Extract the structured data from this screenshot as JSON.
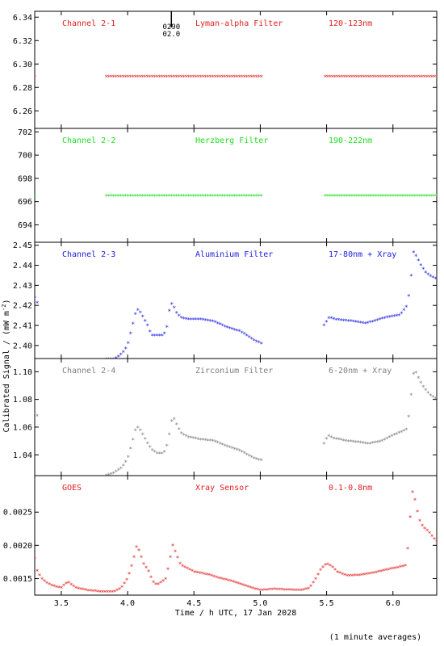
{
  "figure": {
    "ylabel": "Calibrated Signal / (mW m",
    "ylabel_sup": "-2",
    "ylabel_close": ")",
    "xlabel": "Time / h UTC, 17 Jan 2028",
    "footnote": "(1 minute averages)",
    "marker_label_1": "0290",
    "marker_label_2": "02.0",
    "marker_x": 4.33
  },
  "chart_data": [
    {
      "type": "scatter",
      "panel": "Channel 2-1",
      "labels": [
        "Channel 2-1",
        "Lyman-alpha Filter",
        "120-123nm"
      ],
      "color": "#e02020",
      "xlim": [
        3.3,
        6.33
      ],
      "ylim": [
        6.245,
        6.345
      ],
      "yticks": [
        6.26,
        6.28,
        6.3,
        6.32,
        6.34
      ],
      "ytick_labels": [
        "6.26",
        "6.28",
        "6.30",
        "6.32",
        "6.34"
      ],
      "segments": [
        {
          "x0": 3.3,
          "x1": 3.31,
          "points": [
            [
              3.3,
              6.289
            ],
            [
              3.31,
              6.289
            ]
          ]
        },
        {
          "x0": 3.84,
          "x1": 5.01,
          "points": [
            [
              3.84,
              6.289
            ],
            [
              5.01,
              6.289
            ]
          ]
        },
        {
          "x0": 5.49,
          "x1": 6.33,
          "points": [
            [
              5.49,
              6.289
            ],
            [
              6.33,
              6.289
            ]
          ]
        }
      ]
    },
    {
      "type": "scatter",
      "panel": "Channel 2-2",
      "labels": [
        "Channel 2-2",
        "Herzberg Filter",
        "190-222nm"
      ],
      "color": "#20e020",
      "xlim": [
        3.3,
        6.33
      ],
      "ylim": [
        692.5,
        702.3
      ],
      "yticks": [
        694,
        696,
        698,
        700,
        702
      ],
      "ytick_labels": [
        "694",
        "696",
        "698",
        "700",
        "702"
      ],
      "segments": [
        {
          "x0": 3.3,
          "x1": 3.31,
          "points": [
            [
              3.3,
              696.5
            ],
            [
              3.31,
              696.5
            ]
          ]
        },
        {
          "x0": 3.84,
          "x1": 5.01,
          "points": [
            [
              3.84,
              696.5
            ],
            [
              5.01,
              696.5
            ]
          ]
        },
        {
          "x0": 5.49,
          "x1": 6.33,
          "points": [
            [
              5.49,
              696.5
            ],
            [
              6.33,
              696.5
            ]
          ]
        }
      ]
    },
    {
      "type": "scatter",
      "panel": "Channel 2-3",
      "labels": [
        "Channel 2-3",
        "Aluminium Filter",
        "17-80nm + Xray"
      ],
      "color": "#2020e0",
      "xlim": [
        3.3,
        6.33
      ],
      "ylim": [
        2.3935,
        2.4515
      ],
      "yticks": [
        2.4,
        2.41,
        2.42,
        2.43,
        2.44,
        2.45
      ],
      "ytick_labels": [
        "2.40",
        "2.41",
        "2.42",
        "2.43",
        "2.44",
        "2.45"
      ],
      "segments": [
        {
          "x0": 3.3,
          "x1": 3.32,
          "points": [
            [
              3.3,
              2.424
            ],
            [
              3.32,
              2.421
            ]
          ]
        },
        {
          "x0": 3.84,
          "x1": 5.01,
          "points": [
            [
              3.84,
              2.393
            ],
            [
              3.9,
              2.393
            ],
            [
              3.96,
              2.396
            ],
            [
              4.0,
              2.4
            ],
            [
              4.03,
              2.408
            ],
            [
              4.06,
              2.416
            ],
            [
              4.08,
              2.418
            ],
            [
              4.1,
              2.416
            ],
            [
              4.15,
              2.41
            ],
            [
              4.18,
              2.405
            ],
            [
              4.22,
              2.405
            ],
            [
              4.26,
              2.405
            ],
            [
              4.28,
              2.406
            ],
            [
              4.3,
              2.41
            ],
            [
              4.32,
              2.42
            ],
            [
              4.34,
              2.421
            ],
            [
              4.36,
              2.417
            ],
            [
              4.4,
              2.414
            ],
            [
              4.45,
              2.413
            ],
            [
              4.55,
              2.413
            ],
            [
              4.65,
              2.412
            ],
            [
              4.75,
              2.409
            ],
            [
              4.85,
              2.407
            ],
            [
              4.92,
              2.404
            ],
            [
              4.97,
              2.402
            ],
            [
              5.01,
              2.401
            ]
          ]
        },
        {
          "x0": 5.48,
          "x1": 6.33,
          "points": [
            [
              5.48,
              2.41
            ],
            [
              5.52,
              2.414
            ],
            [
              5.56,
              2.413
            ],
            [
              5.7,
              2.412
            ],
            [
              5.8,
              2.411
            ],
            [
              5.85,
              2.412
            ],
            [
              5.95,
              2.414
            ],
            [
              6.05,
              2.415
            ],
            [
              6.1,
              2.419
            ],
            [
              6.13,
              2.428
            ],
            [
              6.15,
              2.447
            ],
            [
              6.18,
              2.444
            ],
            [
              6.21,
              2.44
            ],
            [
              6.25,
              2.436
            ],
            [
              6.3,
              2.434
            ],
            [
              6.33,
              2.433
            ]
          ]
        }
      ]
    },
    {
      "type": "scatter",
      "panel": "Channel 2-4",
      "labels": [
        "Channel 2-4",
        "Zirconium Filter",
        "6-20nm + Xray"
      ],
      "color": "#808080",
      "xlim": [
        3.3,
        6.33
      ],
      "ylim": [
        1.025,
        1.1095
      ],
      "yticks": [
        1.04,
        1.06,
        1.08,
        1.1
      ],
      "ytick_labels": [
        "1.04",
        "1.06",
        "1.08",
        "1.10"
      ],
      "segments": [
        {
          "x0": 3.3,
          "x1": 3.32,
          "points": [
            [
              3.3,
              1.07
            ],
            [
              3.32,
              1.068
            ]
          ]
        },
        {
          "x0": 3.84,
          "x1": 5.01,
          "points": [
            [
              3.84,
              1.025
            ],
            [
              3.9,
              1.027
            ],
            [
              3.96,
              1.031
            ],
            [
              4.0,
              1.037
            ],
            [
              4.03,
              1.047
            ],
            [
              4.06,
              1.058
            ],
            [
              4.08,
              1.06
            ],
            [
              4.1,
              1.057
            ],
            [
              4.14,
              1.05
            ],
            [
              4.18,
              1.044
            ],
            [
              4.22,
              1.041
            ],
            [
              4.27,
              1.041
            ],
            [
              4.29,
              1.044
            ],
            [
              4.31,
              1.052
            ],
            [
              4.33,
              1.064
            ],
            [
              4.35,
              1.066
            ],
            [
              4.37,
              1.062
            ],
            [
              4.4,
              1.056
            ],
            [
              4.45,
              1.053
            ],
            [
              4.55,
              1.051
            ],
            [
              4.65,
              1.05
            ],
            [
              4.75,
              1.046
            ],
            [
              4.85,
              1.043
            ],
            [
              4.92,
              1.039
            ],
            [
              4.97,
              1.037
            ],
            [
              5.01,
              1.036
            ]
          ]
        },
        {
          "x0": 5.48,
          "x1": 6.33,
          "points": [
            [
              5.48,
              1.048
            ],
            [
              5.51,
              1.054
            ],
            [
              5.55,
              1.052
            ],
            [
              5.65,
              1.05
            ],
            [
              5.75,
              1.049
            ],
            [
              5.82,
              1.048
            ],
            [
              5.92,
              1.05
            ],
            [
              6.0,
              1.054
            ],
            [
              6.05,
              1.056
            ],
            [
              6.1,
              1.058
            ],
            [
              6.12,
              1.068
            ],
            [
              6.14,
              1.086
            ],
            [
              6.16,
              1.102
            ],
            [
              6.19,
              1.096
            ],
            [
              6.22,
              1.09
            ],
            [
              6.27,
              1.084
            ],
            [
              6.33,
              1.08
            ]
          ]
        }
      ]
    },
    {
      "type": "scatter",
      "panel": "GOES",
      "labels": [
        "GOES",
        "Xray Sensor",
        "0.1-0.8nm"
      ],
      "color": "#e02020",
      "xlim": [
        3.3,
        6.33
      ],
      "ylim": [
        0.00125,
        0.00305
      ],
      "yticks": [
        0.0015,
        0.002,
        0.0025
      ],
      "ytick_labels": [
        "0.0015",
        "0.0020",
        "0.0025"
      ],
      "segments": [
        {
          "x0": 3.3,
          "x1": 6.33,
          "points": [
            [
              3.3,
              0.0018
            ],
            [
              3.32,
              0.0016
            ],
            [
              3.35,
              0.0015
            ],
            [
              3.4,
              0.00142
            ],
            [
              3.45,
              0.00138
            ],
            [
              3.5,
              0.00136
            ],
            [
              3.55,
              0.00145
            ],
            [
              3.58,
              0.0014
            ],
            [
              3.62,
              0.00135
            ],
            [
              3.7,
              0.00132
            ],
            [
              3.8,
              0.0013
            ],
            [
              3.9,
              0.0013
            ],
            [
              3.95,
              0.00135
            ],
            [
              4.0,
              0.0015
            ],
            [
              4.04,
              0.00175
            ],
            [
              4.07,
              0.002
            ],
            [
              4.09,
              0.0019
            ],
            [
              4.12,
              0.00172
            ],
            [
              4.16,
              0.0016
            ],
            [
              4.19,
              0.00145
            ],
            [
              4.22,
              0.0014
            ],
            [
              4.26,
              0.00145
            ],
            [
              4.29,
              0.0015
            ],
            [
              4.32,
              0.0018
            ],
            [
              4.34,
              0.002
            ],
            [
              4.36,
              0.0019
            ],
            [
              4.4,
              0.0017
            ],
            [
              4.5,
              0.0016
            ],
            [
              4.6,
              0.00156
            ],
            [
              4.7,
              0.0015
            ],
            [
              4.8,
              0.00145
            ],
            [
              4.9,
              0.00138
            ],
            [
              5.0,
              0.00132
            ],
            [
              5.1,
              0.00134
            ],
            [
              5.2,
              0.00133
            ],
            [
              5.3,
              0.00132
            ],
            [
              5.37,
              0.00135
            ],
            [
              5.42,
              0.0015
            ],
            [
              5.46,
              0.00165
            ],
            [
              5.5,
              0.00172
            ],
            [
              5.54,
              0.00168
            ],
            [
              5.58,
              0.0016
            ],
            [
              5.65,
              0.00154
            ],
            [
              5.75,
              0.00155
            ],
            [
              5.85,
              0.00158
            ],
            [
              5.95,
              0.00163
            ],
            [
              6.05,
              0.00167
            ],
            [
              6.1,
              0.0017
            ],
            [
              6.12,
              0.00215
            ],
            [
              6.14,
              0.00275
            ],
            [
              6.15,
              0.00282
            ],
            [
              6.17,
              0.00265
            ],
            [
              6.19,
              0.00245
            ],
            [
              6.21,
              0.00232
            ],
            [
              6.24,
              0.00225
            ],
            [
              6.27,
              0.0022
            ],
            [
              6.3,
              0.00212
            ],
            [
              6.33,
              0.00205
            ]
          ]
        }
      ]
    }
  ],
  "xaxis": {
    "ticks": [
      3.5,
      4.0,
      4.5,
      5.0,
      5.5,
      6.0
    ],
    "tick_labels": [
      "3.5",
      "4.0",
      "4.5",
      "5.0",
      "5.5",
      "6.0"
    ]
  }
}
